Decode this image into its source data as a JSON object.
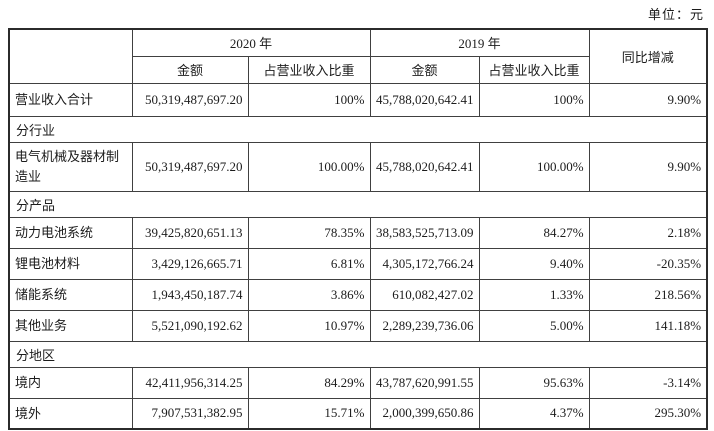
{
  "unit_label": "单位：元",
  "table": {
    "headers": {
      "year_2020": "2020 年",
      "year_2019": "2019 年",
      "yoy": "同比增减",
      "amount": "金额",
      "ratio": "占营业收入比重"
    },
    "rows": [
      {
        "type": "data",
        "first": true,
        "shaded": true,
        "label": "营业收入合计",
        "amount_2020": "50,319,487,697.20",
        "ratio_2020": "100%",
        "amount_2019": "45,788,020,642.41",
        "ratio_2019": "100%",
        "yoy": "9.90%"
      },
      {
        "type": "section",
        "label": "分行业"
      },
      {
        "type": "data",
        "tall": true,
        "label": "电气机械及器材制造业",
        "amount_2020": "50,319,487,697.20",
        "ratio_2020": "100.00%",
        "amount_2019": "45,788,020,642.41",
        "ratio_2019": "100.00%",
        "yoy": "9.90%"
      },
      {
        "type": "section",
        "label": "分产品"
      },
      {
        "type": "data",
        "label": "动力电池系统",
        "amount_2020": "39,425,820,651.13",
        "ratio_2020": "78.35%",
        "amount_2019": "38,583,525,713.09",
        "ratio_2019": "84.27%",
        "yoy": "2.18%"
      },
      {
        "type": "data",
        "label": "锂电池材料",
        "amount_2020": "3,429,126,665.71",
        "ratio_2020": "6.81%",
        "amount_2019": "4,305,172,766.24",
        "ratio_2019": "9.40%",
        "yoy": "-20.35%"
      },
      {
        "type": "data",
        "label": "储能系统",
        "amount_2020": "1,943,450,187.74",
        "ratio_2020": "3.86%",
        "amount_2019": "610,082,427.02",
        "ratio_2019": "1.33%",
        "yoy": "218.56%"
      },
      {
        "type": "data",
        "label": "其他业务",
        "amount_2020": "5,521,090,192.62",
        "ratio_2020": "10.97%",
        "amount_2019": "2,289,239,736.06",
        "ratio_2019": "5.00%",
        "yoy": "141.18%"
      },
      {
        "type": "section",
        "label": "分地区"
      },
      {
        "type": "data",
        "label": "境内",
        "amount_2020": "42,411,956,314.25",
        "ratio_2020": "84.29%",
        "amount_2019": "43,787,620,991.55",
        "ratio_2019": "95.63%",
        "yoy": "-3.14%"
      },
      {
        "type": "data",
        "label": "境外",
        "amount_2020": "7,907,531,382.95",
        "ratio_2020": "15.71%",
        "amount_2019": "2,000,399,650.86",
        "ratio_2019": "4.37%",
        "yoy": "295.30%"
      }
    ]
  }
}
